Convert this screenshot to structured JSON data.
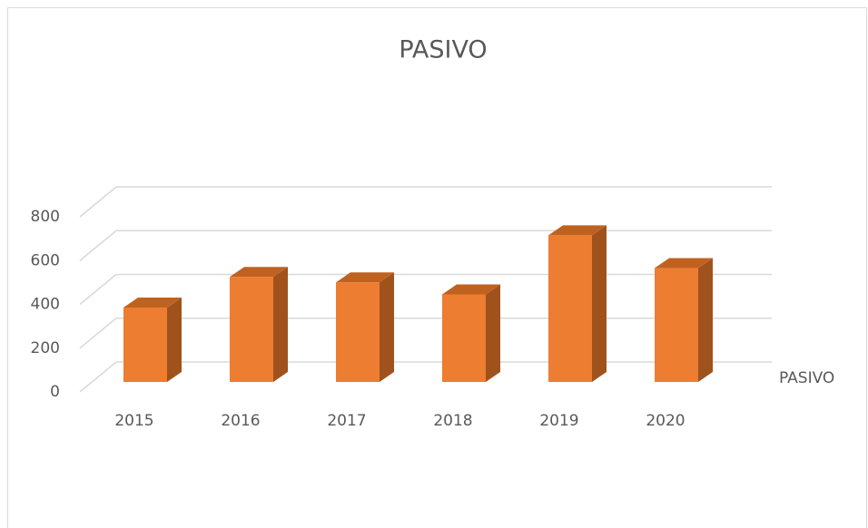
{
  "chart_data": {
    "type": "bar3d",
    "title": "PASIVO",
    "categories": [
      "2015",
      "2016",
      "2017",
      "2018",
      "2019",
      "2020"
    ],
    "series": [
      {
        "name": "PASIVO",
        "color": "#ed7d31",
        "values": [
          340,
          480,
          455,
          400,
          670,
          520
        ]
      }
    ],
    "ylim": [
      0,
      800
    ],
    "yticks": [
      0,
      200,
      400,
      600,
      800
    ],
    "grid": true,
    "legend": "right"
  }
}
